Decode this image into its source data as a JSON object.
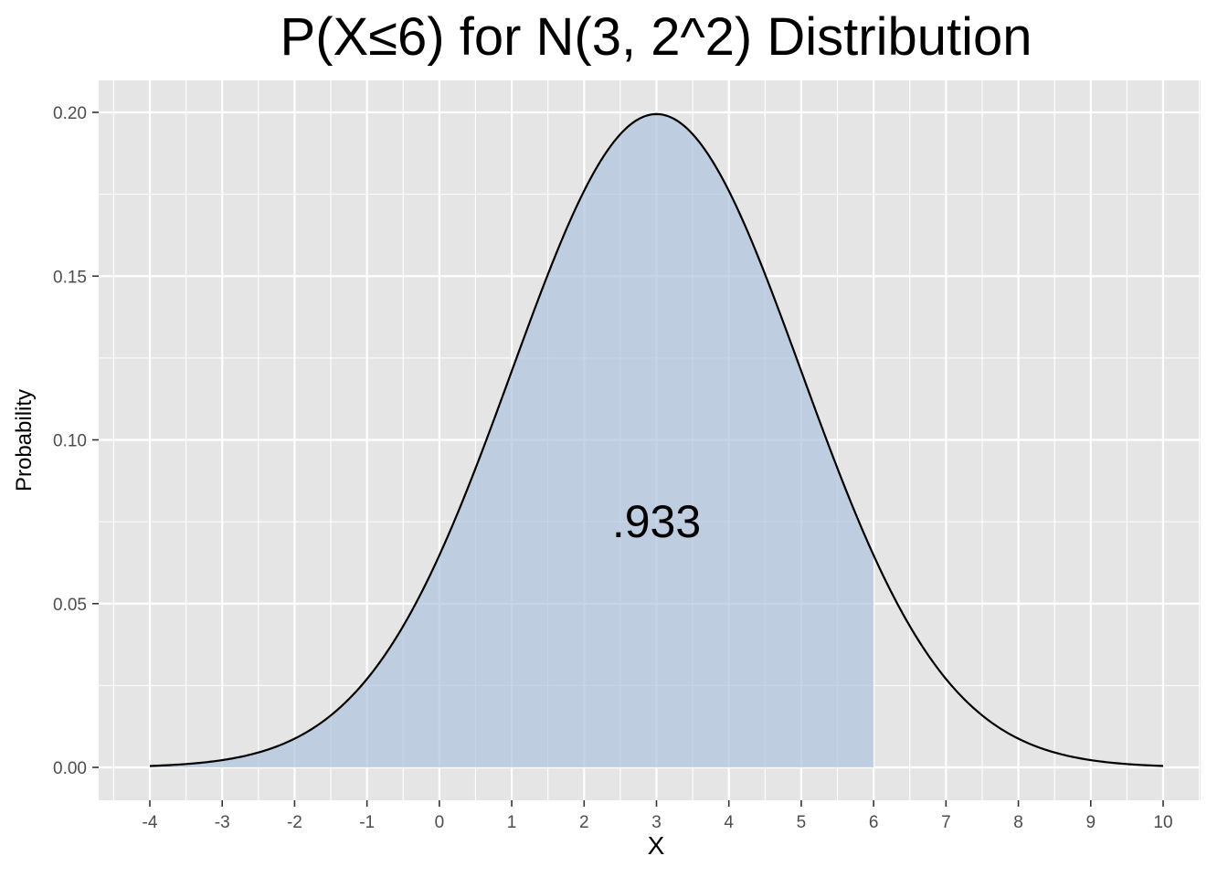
{
  "chart_data": {
    "type": "area",
    "title": "P(X≤6) for N(3, 2^2) Distribution",
    "xlabel": "X",
    "ylabel": "Probability",
    "distribution": {
      "family": "normal",
      "mean": 3,
      "sd": 2
    },
    "xlim": [
      -4,
      10
    ],
    "ylim": [
      0,
      0.2
    ],
    "x_ticks": [
      "-4",
      "-3",
      "-2",
      "-1",
      "0",
      "1",
      "2",
      "3",
      "4",
      "5",
      "6",
      "7",
      "8",
      "9",
      "10"
    ],
    "y_ticks": [
      "0.00",
      "0.05",
      "0.10",
      "0.15",
      "0.20"
    ],
    "shaded_region": {
      "from": -4,
      "to": 6,
      "color": "#b0c4de"
    },
    "curve_color": "#000000",
    "annotation": {
      "text": ".933",
      "x": 3,
      "y": 0.074
    },
    "grid": true,
    "panel_background": "#e5e5e5",
    "grid_color": "#ffffff"
  }
}
